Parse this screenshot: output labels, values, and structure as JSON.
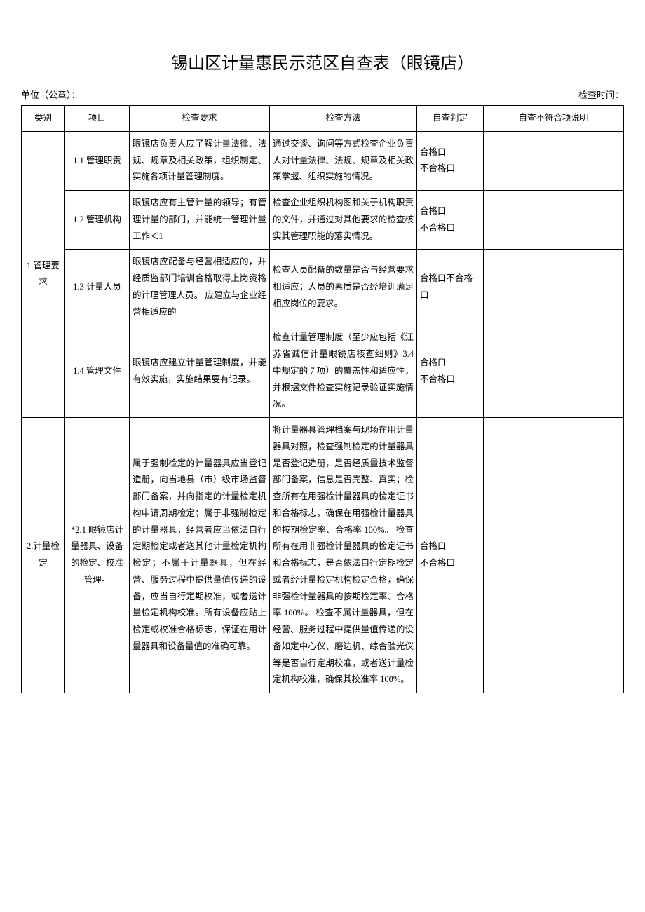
{
  "title": "锡山区计量惠民示范区自查表（眼镜店）",
  "meta": {
    "unit_label": "单位（公章）：",
    "time_label": "检查时间："
  },
  "headers": {
    "category": "类别",
    "item": "项目",
    "requirement": "检查要求",
    "method": "检查方法",
    "judgement": "自查判定",
    "note": "自查不符合项说明"
  },
  "judge": {
    "pass": "合格口",
    "fail": "不合格口",
    "passfail_inline": "合格口不合格口"
  },
  "cat1": {
    "name": "1.管理要求",
    "r1": {
      "item": "1.1 管理职责",
      "req": "眼镜店负责人应了解计量法律、法规、规章及相关政策，组织制定、实施各项计量管理制度。",
      "method": "通过交谈、询问等方式检查企业负责人对计量法律、法规、规章及相关政策掌握、组织实施的情况。"
    },
    "r2": {
      "item": "1.2 管理机构",
      "req": "眼镜店应有主管计量的领导；有管理计量的部门，并能统一管理计量工作＜1",
      "method": "检查企业组织机构图和关于机构职责的文件，并通过对其他要求的检查核实其管理职能的落实情况。"
    },
    "r3": {
      "item": "1.3 计量人员",
      "req": "眼镜店应配备与经营相适应的，并经质监部门培训合格取得上岗资格的计理管理人员。\n应建立与企业经营相适应的",
      "method": "检查人员配备的数量是否与经营要求相适应；人员的素质是否经培训满足相应岗位的要求。"
    },
    "r4": {
      "item": "1.4 管理文件",
      "req": "眼镜店应建立计量管理制度，并能有效实施，实施结果要有记录。",
      "method": "检查计量管理制度（至少应包括《江苏省诚信计量眼镜店核查细则》3.4 中规定的 7 项）的覆盖性和适应性，并根据文件检查实施记录验证实施情况。"
    }
  },
  "cat2": {
    "name": "2.计量检定",
    "r1": {
      "item": "*2.1 眼镜店计量器具、设备的检定、校准管理。",
      "req": "属于强制检定的计量器具应当登记造册，向当地县（市）级市场监督部门备案，并向指定的计量检定机构申请周期检定；属于非强制检定的计量器具，经营者应当依法自行定期检定或者送其他计量检定机构检定；不属于计量器具，但在经营、服务过程中提供量值传递的设备，应当自行定期校准，或者送计量检定机构校准。所有设备应贴上检定或校准合格标志，保证在用计量器具和设备量值的准确可靠。",
      "method": "将计量器具管理档案与现场在用计量器具对照，检查强制检定的计量器具是否登记造册，是否经质量技术监督部门备案，信息是否完整、真实；检查所有在用强检计量器具的检定证书和合格标志，确保在用强检计量器具的按期检定率、合格率 100%。\n检查所有在用非强检计量器具的检定证书和合格标志，是否依法自行定期检定或者经计量检定机构检定合格，确保非强检计量器具的按期检定率、合格率 100%。\n检查不属计量器具，但在经营、服务过程中提供量值传递的设备如定中心仪、磨边机、综合验光仪等是否自行定期校准，或者送计量检定机构校准，确保其校准率 100%。"
    }
  }
}
